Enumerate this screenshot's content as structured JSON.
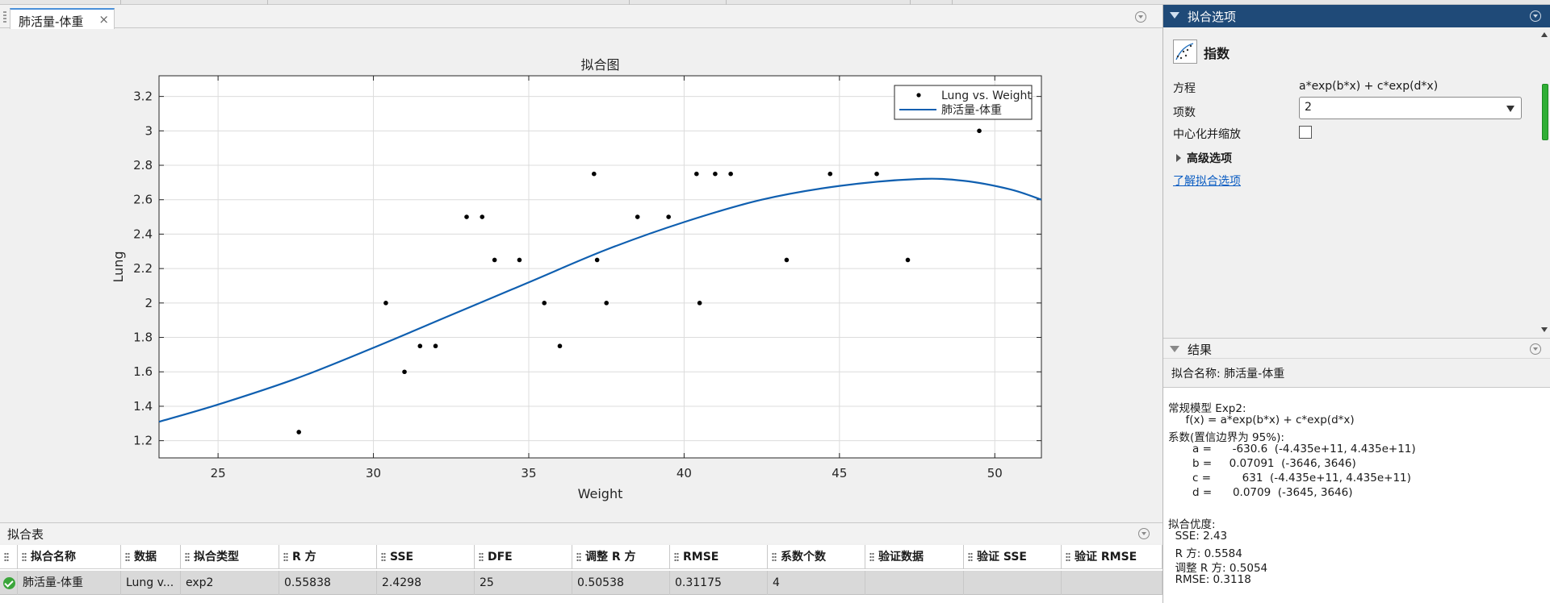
{
  "document_tab": {
    "label": "肺活量-体重",
    "close": "×"
  },
  "plot": {
    "title": "拟合图",
    "xlabel": "Weight",
    "ylabel": "Lung",
    "legend": {
      "placement": "top-right",
      "entries": [
        "Lung vs. Weight",
        "肺活量-体重"
      ]
    }
  },
  "chart_data": {
    "type": "scatter",
    "title": "拟合图",
    "xlabel": "Weight",
    "ylabel": "Lung",
    "xlim": [
      23.1,
      51.5
    ],
    "ylim": [
      1.1,
      3.32
    ],
    "xticks": [
      25,
      30,
      35,
      40,
      45,
      50
    ],
    "yticks": [
      1.2,
      1.4,
      1.6,
      1.8,
      2,
      2.2,
      2.4,
      2.6,
      2.8,
      3,
      3.2
    ],
    "ytick_labels": [
      "1.2",
      "1.4",
      "1.6",
      "1.8",
      "2",
      "2.2",
      "2.4",
      "2.6",
      "2.8",
      "3",
      "3.2"
    ],
    "grid": true,
    "series": [
      {
        "name": "Lung vs. Weight",
        "type": "scatter",
        "color": "#000000",
        "points": [
          [
            27.6,
            1.25
          ],
          [
            30.4,
            2.0
          ],
          [
            31.0,
            1.6
          ],
          [
            31.5,
            1.75
          ],
          [
            32.0,
            1.75
          ],
          [
            33.0,
            2.5
          ],
          [
            33.5,
            2.5
          ],
          [
            33.9,
            2.25
          ],
          [
            34.7,
            2.25
          ],
          [
            35.5,
            2.0
          ],
          [
            36.0,
            1.75
          ],
          [
            37.1,
            2.75
          ],
          [
            37.2,
            2.25
          ],
          [
            37.5,
            2.0
          ],
          [
            38.5,
            2.5
          ],
          [
            39.5,
            2.5
          ],
          [
            40.4,
            2.75
          ],
          [
            40.5,
            2.0
          ],
          [
            41.0,
            2.75
          ],
          [
            41.5,
            2.75
          ],
          [
            43.3,
            2.25
          ],
          [
            44.7,
            2.75
          ],
          [
            46.2,
            2.75
          ],
          [
            47.2,
            2.25
          ],
          [
            49.5,
            3.0
          ]
        ]
      },
      {
        "name": "肺活量-体重",
        "type": "line",
        "color": "#0f5fb0",
        "points": [
          [
            23.1,
            1.31
          ],
          [
            25,
            1.41
          ],
          [
            27.5,
            1.56
          ],
          [
            30,
            1.74
          ],
          [
            32.5,
            1.93
          ],
          [
            35,
            2.12
          ],
          [
            37.5,
            2.31
          ],
          [
            40,
            2.47
          ],
          [
            42.5,
            2.6
          ],
          [
            45,
            2.68
          ],
          [
            47.5,
            2.72
          ],
          [
            49,
            2.71
          ],
          [
            50.5,
            2.66
          ],
          [
            51.5,
            2.6
          ]
        ]
      }
    ]
  },
  "fit_table": {
    "title": "拟合表",
    "columns": [
      "拟合名称",
      "数据",
      "拟合类型",
      "R 方",
      "SSE",
      "DFE",
      "调整 R 方",
      "RMSE",
      "系数个数",
      "验证数据",
      "验证 SSE",
      "验证 RMSE"
    ],
    "rows": [
      {
        "status": "check-icon",
        "cells": [
          "肺活量-体重",
          "Lung v...",
          "exp2",
          "0.55838",
          "2.4298",
          "25",
          "0.50538",
          "0.31175",
          "4",
          "",
          "",
          ""
        ]
      }
    ]
  },
  "fit_options": {
    "header": "拟合选项",
    "fit_type": "指数",
    "equation_label": "方程",
    "equation": "a*exp(b*x) + c*exp(d*x)",
    "terms_label": "项数",
    "terms_value": "2",
    "center_scale_label": "中心化并缩放",
    "center_scale_checked": false,
    "advanced_label": "高级选项",
    "learn_link": "了解拟合选项"
  },
  "results": {
    "header": "结果",
    "fit_name": "拟合名称: 肺活量-体重",
    "lines": [
      "常规模型 Exp2:",
      "     f(x) = a*exp(b*x) + c*exp(d*x)",
      "系数(置信边界为 95%):",
      "       a =      -630.6  (-4.435e+11, 4.435e+11)",
      "       b =     0.07091  (-3646, 3646)",
      "       c =         631  (-4.435e+11, 4.435e+11)",
      "       d =      0.0709  (-3645, 3646)",
      "",
      "拟合优度:",
      "  SSE: 2.43",
      "  R 方: 0.5584",
      "  调整 R 方: 0.5054",
      "  RMSE: 0.3118"
    ]
  }
}
